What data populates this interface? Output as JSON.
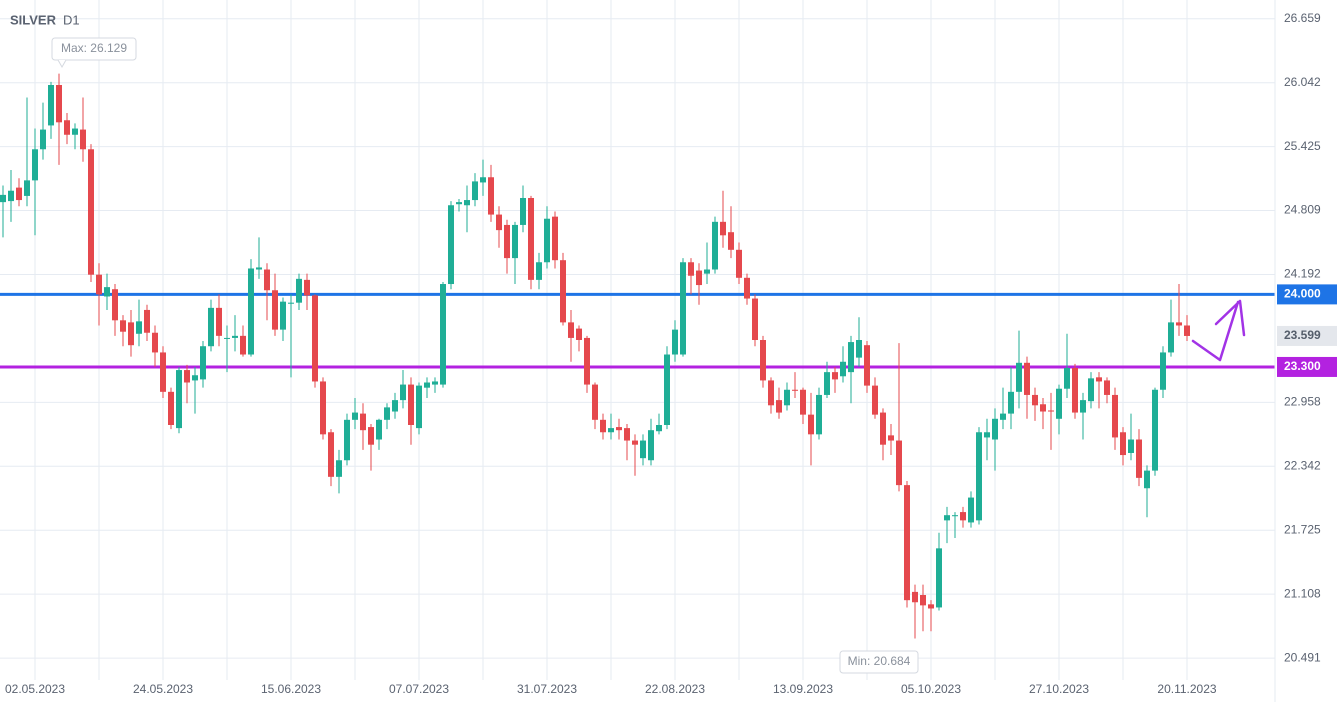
{
  "chart_data": {
    "type": "candlestick",
    "title": "SILVER",
    "subtitle": "D1",
    "max_label": "Max: 26.129",
    "min_label": "Min: 20.684",
    "up_color": "#1fae96",
    "down_color": "#e5484d",
    "grid": true,
    "ylim": [
      20.28,
      26.84
    ],
    "yticks": [
      20.491,
      21.108,
      21.725,
      22.342,
      22.958,
      24.192,
      24.809,
      25.425,
      26.042,
      26.659
    ],
    "levels": [
      {
        "value": 24,
        "label": "24.000",
        "color": "#1e74e6"
      },
      {
        "value": 23.3,
        "label": "23.300",
        "color": "#b322e0"
      }
    ],
    "categories": [
      null,
      null,
      null,
      null,
      "02.05.2023",
      null,
      null,
      null,
      null,
      null,
      null,
      null,
      null,
      null,
      null,
      null,
      null,
      null,
      null,
      null,
      "24.05.2023",
      null,
      null,
      null,
      null,
      null,
      null,
      null,
      null,
      null,
      null,
      null,
      null,
      null,
      null,
      null,
      "15.06.2023",
      null,
      null,
      null,
      null,
      null,
      null,
      null,
      null,
      null,
      null,
      null,
      null,
      null,
      null,
      null,
      "07.07.2023",
      null,
      null,
      null,
      null,
      null,
      null,
      null,
      null,
      null,
      null,
      null,
      null,
      null,
      null,
      null,
      "31.07.2023",
      null,
      null,
      null,
      null,
      null,
      null,
      null,
      null,
      null,
      null,
      null,
      null,
      null,
      null,
      null,
      "22.08.2023",
      null,
      null,
      null,
      null,
      null,
      null,
      null,
      null,
      null,
      null,
      null,
      null,
      null,
      null,
      null,
      "13.09.2023",
      null,
      null,
      null,
      null,
      null,
      null,
      null,
      null,
      null,
      null,
      null,
      null,
      null,
      null,
      null,
      "05.10.2023",
      null,
      null,
      null,
      null,
      null,
      null,
      null,
      null,
      null,
      null,
      null,
      null,
      null,
      null,
      null,
      "27.10.2023",
      null,
      null,
      null,
      null,
      null,
      null,
      null,
      null,
      null,
      null,
      null,
      null,
      null,
      null,
      null,
      "20.11.2023"
    ],
    "open": [
      24.89,
      24.9,
      25.03,
      24.95,
      25.1,
      25.4,
      25.63,
      26.02,
      25.68,
      25.54,
      25.59,
      25.4,
      24.19,
      23.98,
      24.05,
      23.75,
      23.73,
      23.62,
      23.85,
      23.63,
      23.44,
      23.06,
      22.71,
      23.27,
      23.17,
      23.18,
      23.5,
      23.87,
      23.58,
      23.58,
      23.6,
      23.42,
      24.24,
      24.24,
      24.04,
      23.66,
      23.91,
      23.92,
      24.14,
      23.99,
      23.16,
      22.67,
      22.24,
      22.4,
      22.79,
      22.85,
      22.72,
      22.6,
      22.79,
      22.87,
      22.98,
      23.13,
      22.71,
      23.1,
      23.13,
      23.13,
      24.1,
      24.87,
      24.86,
      24.91,
      25.08,
      25.13,
      24.77,
      24.67,
      24.35,
      24.67,
      24.93,
      24.14,
      24.31,
      24.75,
      24.33,
      23.73,
      23.67,
      23.58,
      23.13,
      22.79,
      22.67,
      22.72,
      22.71,
      22.59,
      22.42,
      22.4,
      22.68,
      22.74,
      23.42,
      23.42,
      24.31,
      24.23,
      24.2,
      24.24,
      24.7,
      24.6,
      24.43,
      24.16,
      23.96,
      23.56,
      23.17,
      22.98,
      22.93,
      23.08,
      23.08,
      22.84,
      22.65,
      23.03,
      23.25,
      23.21,
      23.25,
      23.39,
      23.51,
      23.12,
      22.86,
      22.64,
      22.59,
      22.16,
      21.13,
      21.1,
      21.01,
      20.98,
      21.82,
      21.86,
      21.9,
      21.8,
      21.82,
      22.62,
      22.6,
      22.79,
      22.85,
      23.06,
      23.34,
      23.03,
      22.94,
      22.88,
      22.8,
      23.09,
      23.29,
      22.86,
      22.97,
      23.2,
      23.17,
      23.03,
      22.67,
      22.47,
      22.6,
      22.13,
      22.3,
      23.08,
      23.44,
      23.73,
      23.7
    ],
    "high": [
      25.05,
      25.2,
      25.12,
      25.9,
      25.6,
      25.85,
      26.05,
      26.13,
      25.75,
      25.65,
      25.9,
      25.45,
      24.3,
      24.2,
      24.1,
      23.8,
      23.85,
      23.95,
      23.9,
      23.7,
      23.5,
      23.1,
      23.3,
      23.32,
      23.3,
      23.55,
      23.95,
      24.0,
      23.7,
      23.8,
      23.7,
      24.34,
      24.55,
      24.3,
      24.2,
      23.97,
      24.0,
      24.2,
      24.2,
      24.0,
      23.2,
      22.7,
      22.5,
      22.85,
      23.0,
      22.95,
      22.75,
      22.8,
      22.95,
      23.05,
      23.27,
      23.2,
      23.15,
      23.2,
      23.2,
      24.12,
      24.9,
      24.92,
      25.05,
      25.17,
      25.3,
      25.25,
      24.85,
      24.72,
      24.7,
      25.05,
      24.95,
      24.4,
      24.85,
      24.8,
      24.4,
      23.85,
      23.7,
      23.6,
      23.15,
      22.85,
      22.85,
      22.8,
      22.75,
      22.65,
      22.65,
      22.8,
      22.85,
      23.5,
      23.75,
      24.35,
      24.35,
      24.3,
      24.5,
      24.75,
      25.0,
      24.85,
      24.5,
      24.2,
      24.0,
      23.6,
      23.2,
      23.1,
      23.15,
      23.25,
      23.1,
      23.05,
      23.1,
      23.35,
      23.3,
      23.5,
      23.6,
      23.78,
      23.55,
      23.2,
      22.9,
      22.75,
      23.53,
      22.2,
      21.2,
      21.2,
      21.05,
      21.7,
      21.95,
      21.9,
      21.95,
      22.1,
      22.72,
      22.8,
      22.9,
      23.1,
      23.3,
      23.65,
      23.4,
      23.1,
      23.0,
      23.05,
      23.13,
      23.62,
      23.33,
      23.05,
      23.25,
      23.25,
      23.2,
      23.1,
      22.72,
      22.85,
      22.7,
      22.35,
      23.1,
      23.5,
      23.95,
      24.1,
      23.8
    ],
    "low": [
      24.55,
      24.7,
      24.85,
      24.85,
      24.57,
      25.3,
      25.5,
      25.25,
      25.45,
      25.4,
      25.28,
      24.12,
      23.7,
      23.85,
      23.6,
      23.5,
      23.4,
      23.5,
      23.55,
      23.3,
      23.0,
      22.7,
      22.66,
      22.95,
      22.85,
      23.1,
      23.45,
      23.5,
      23.25,
      23.45,
      23.4,
      23.4,
      24.15,
      23.75,
      23.6,
      23.55,
      23.2,
      23.85,
      23.85,
      23.1,
      22.6,
      22.15,
      22.08,
      22.35,
      22.7,
      22.5,
      22.3,
      22.5,
      22.7,
      22.8,
      22.9,
      22.55,
      22.65,
      23.0,
      23.05,
      23.1,
      24.05,
      24.8,
      24.6,
      24.85,
      24.95,
      24.7,
      24.45,
      24.2,
      24.1,
      24.6,
      24.05,
      24.05,
      24.25,
      24.25,
      23.7,
      23.35,
      23.45,
      23.05,
      22.7,
      22.6,
      22.6,
      22.6,
      22.4,
      22.25,
      22.35,
      22.35,
      22.65,
      22.7,
      23.35,
      23.4,
      24.0,
      23.9,
      24.1,
      24.2,
      24.45,
      24.35,
      24.1,
      23.9,
      23.5,
      23.1,
      22.85,
      22.8,
      22.88,
      23.0,
      22.75,
      22.35,
      22.6,
      23.0,
      23.05,
      23.15,
      22.95,
      23.3,
      23.05,
      22.8,
      22.4,
      22.45,
      22.1,
      20.98,
      20.68,
      20.75,
      20.75,
      20.95,
      21.6,
      21.65,
      21.75,
      21.75,
      21.78,
      22.4,
      22.3,
      22.7,
      22.7,
      22.9,
      22.8,
      22.78,
      22.7,
      22.5,
      22.65,
      23.0,
      22.8,
      22.6,
      22.9,
      22.9,
      22.95,
      22.5,
      22.35,
      22.4,
      22.15,
      21.85,
      22.25,
      23.0,
      23.4,
      23.6,
      23.55
    ],
    "close": [
      24.96,
      25.0,
      24.91,
      25.1,
      25.4,
      25.59,
      26.02,
      25.66,
      25.54,
      25.6,
      25.4,
      24.19,
      24.0,
      24.07,
      23.75,
      23.64,
      23.51,
      23.74,
      23.63,
      23.44,
      23.06,
      22.74,
      23.27,
      23.15,
      23.22,
      23.5,
      23.87,
      23.6,
      23.58,
      23.6,
      23.42,
      24.25,
      24.26,
      24.04,
      23.66,
      23.93,
      23.92,
      24.15,
      23.99,
      23.16,
      22.65,
      22.24,
      22.4,
      22.79,
      22.86,
      22.69,
      22.55,
      22.79,
      22.91,
      22.98,
      23.13,
      22.74,
      23.12,
      23.15,
      23.16,
      24.1,
      24.86,
      24.89,
      24.91,
      25.09,
      25.13,
      24.77,
      24.62,
      24.35,
      24.67,
      24.93,
      24.14,
      24.31,
      24.73,
      24.33,
      23.73,
      23.58,
      23.56,
      23.13,
      22.79,
      22.67,
      22.71,
      22.69,
      22.59,
      22.55,
      22.59,
      22.69,
      22.74,
      23.42,
      23.66,
      24.31,
      24.18,
      24.09,
      24.24,
      24.7,
      24.57,
      24.43,
      24.16,
      23.96,
      23.56,
      23.17,
      22.93,
      22.86,
      23.08,
      23.07,
      22.84,
      22.65,
      23.03,
      23.25,
      23.18,
      23.35,
      23.54,
      23.56,
      23.12,
      22.84,
      22.55,
      22.59,
      22.16,
      21.05,
      21.03,
      21.0,
      20.97,
      21.55,
      21.87,
      21.87,
      21.82,
      22.04,
      22.67,
      22.67,
      22.8,
      22.85,
      23.06,
      23.34,
      23.03,
      22.93,
      22.87,
      22.87,
      23.09,
      23.29,
      22.86,
      22.98,
      23.19,
      23.16,
      23.03,
      22.62,
      22.45,
      22.6,
      22.23,
      22.3,
      23.08,
      23.44,
      23.73,
      23.7,
      23.599
    ]
  }
}
